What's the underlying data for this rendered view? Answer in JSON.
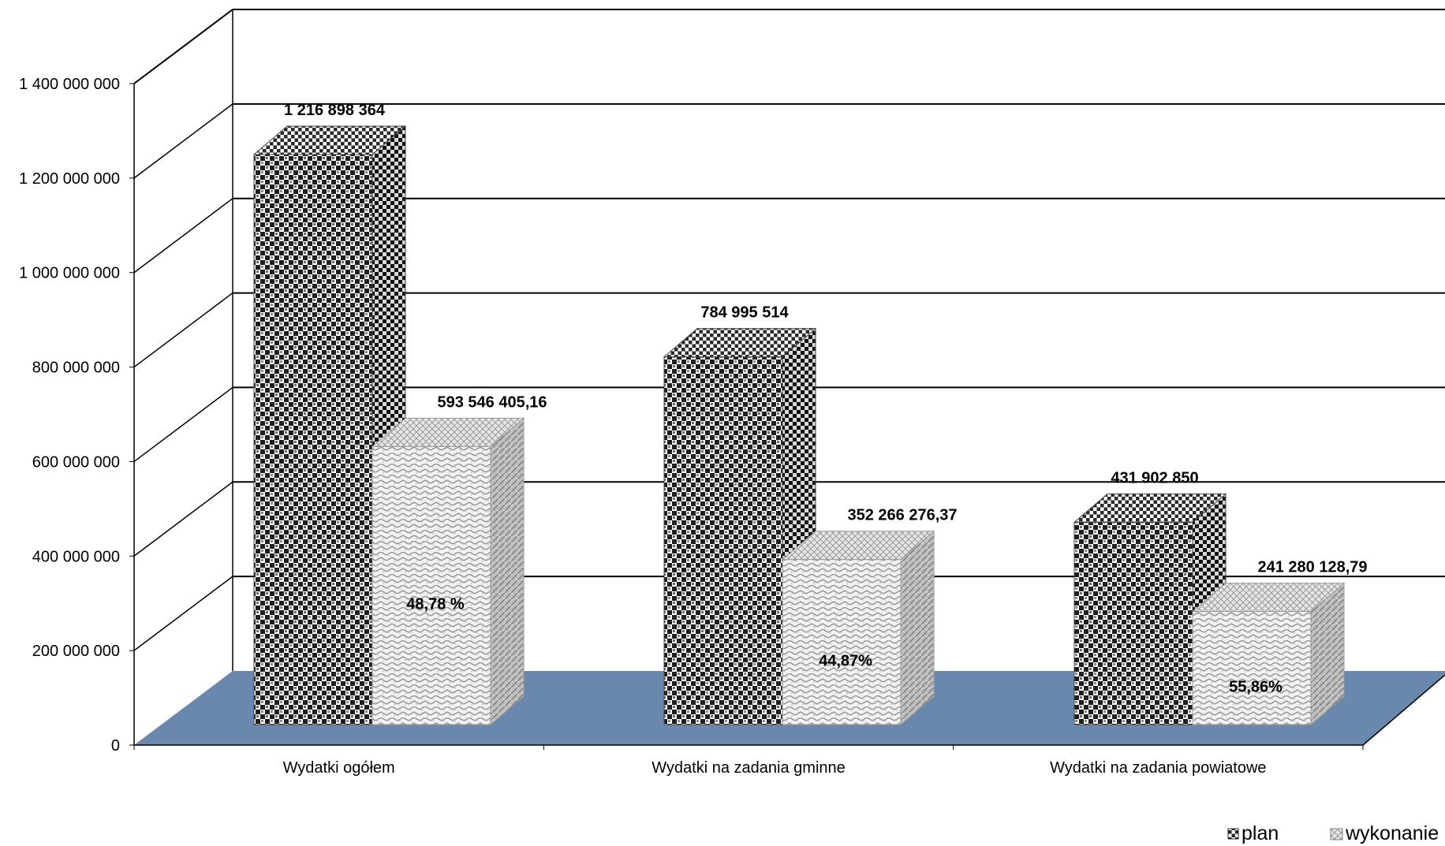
{
  "chart_data": {
    "type": "bar",
    "title": "",
    "xlabel": "",
    "ylabel": "",
    "ylim": [
      0,
      1400000000
    ],
    "yticks": [
      0,
      200000000,
      400000000,
      600000000,
      800000000,
      1000000000,
      1200000000,
      1400000000
    ],
    "ytick_labels": [
      "0",
      "200 000 000",
      "400 000 000",
      "600 000 000",
      "800 000 000",
      "1 000 000 000",
      "1 200 000 000",
      "1 400 000 000"
    ],
    "grid": true,
    "legend_position": "bottom-right",
    "categories": [
      "Wydatki ogółem",
      "Wydatki na zadania gminne",
      "Wydatki na zadania powiatowe"
    ],
    "series": [
      {
        "name": "plan",
        "values": [
          1216898364,
          784995514,
          431902850
        ],
        "labels": [
          "1 216 898 364",
          "784 995 514",
          "431 902 850"
        ],
        "pattern": "checkered-dark"
      },
      {
        "name": "wykonanie",
        "values": [
          593546405.16,
          352266276.37,
          241280128.79
        ],
        "labels": [
          "593 546 405,16",
          "352 266 276,37",
          "241 280 128,79"
        ],
        "percent_labels": [
          "48,78 %",
          "44,87%",
          "55,86%"
        ],
        "pattern": "zigzag-light"
      }
    ],
    "floor_color": "#6a88ae"
  }
}
